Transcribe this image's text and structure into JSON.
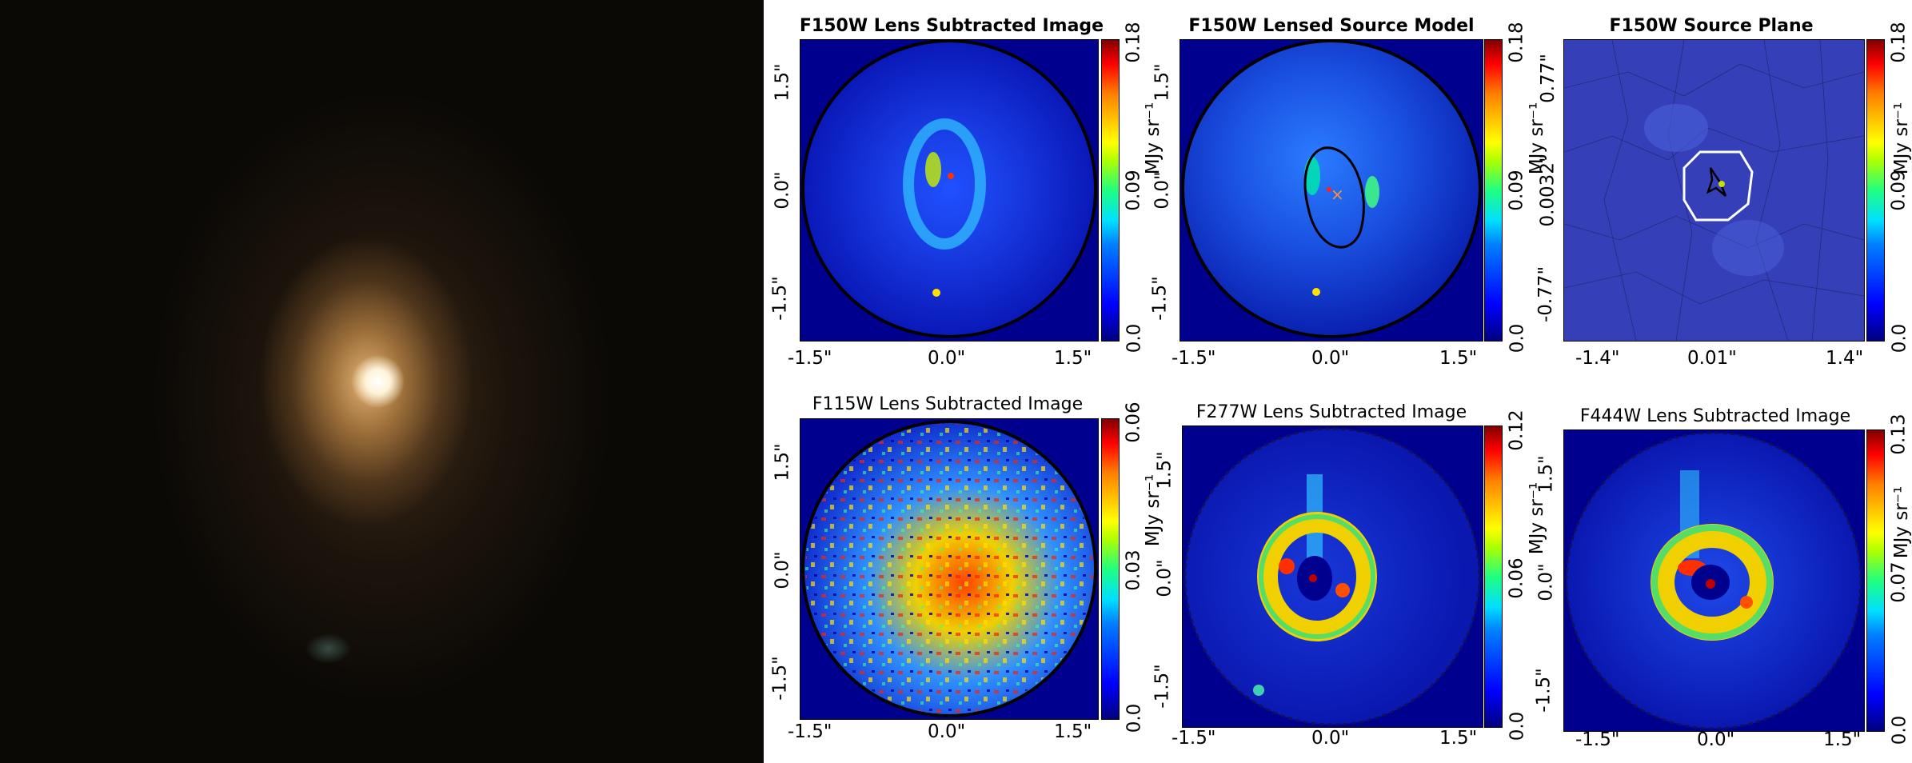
{
  "galaxy_image": {
    "description_label": ""
  },
  "colors": {
    "cmap_low": "#00008f",
    "cmap_high": "#ff0000",
    "source_bg": "#3540b8"
  },
  "panels": [
    {
      "title": "F150W Lens Subtracted Image",
      "title_bold": true,
      "x_ticks": [
        "-1.5\"",
        "0.0\"",
        "1.5\""
      ],
      "y_ticks": [
        "1.5\"",
        "0.0\"",
        "-1.5\""
      ],
      "cbar_ticks": [
        "0.18",
        "0.09",
        "0.0"
      ],
      "cbar_label": "MJy sr⁻¹"
    },
    {
      "title": "F150W Lensed Source Model",
      "title_bold": true,
      "x_ticks": [
        "-1.5\"",
        "0.0\"",
        "1.5\""
      ],
      "y_ticks": [
        "1.5\"",
        "0.0\"",
        "-1.5\""
      ],
      "cbar_ticks": [
        "0.18",
        "0.09",
        "0.0"
      ],
      "cbar_label": "MJy sr⁻¹"
    },
    {
      "title": "F150W Source Plane",
      "title_bold": true,
      "x_ticks": [
        "-1.4\"",
        "0.01\"",
        "1.4\""
      ],
      "y_ticks": [
        "0.77\"",
        "0.0032\"",
        "-0.77\""
      ],
      "cbar_ticks": [
        "0.18",
        "0.09",
        "0.0"
      ],
      "cbar_label": "MJy sr⁻¹"
    },
    {
      "title": "F115W Lens Subtracted Image",
      "title_bold": false,
      "x_ticks": [
        "-1.5\"",
        "0.0\"",
        "1.5\""
      ],
      "y_ticks": [
        "1.5\"",
        "0.0\"",
        "-1.5\""
      ],
      "cbar_ticks": [
        "0.06",
        "0.03",
        "0.0"
      ],
      "cbar_label": "MJy sr⁻¹"
    },
    {
      "title": "F277W Lens Subtracted Image",
      "title_bold": false,
      "x_ticks": [
        "-1.5\"",
        "0.0\"",
        "1.5\""
      ],
      "y_ticks": [
        "1.5\"",
        "0.0\"",
        "-1.5\""
      ],
      "cbar_ticks": [
        "0.12",
        "0.06",
        "0.0"
      ],
      "cbar_label": "MJy sr⁻¹"
    },
    {
      "title": "F444W Lens Subtracted Image",
      "title_bold": false,
      "x_ticks": [
        "-1.5\"",
        "0.0\"",
        "1.5\""
      ],
      "y_ticks": [
        "1.5\"",
        "0.0\"",
        "-1.5\""
      ],
      "cbar_ticks": [
        "0.13",
        "0.07",
        "0.0"
      ],
      "cbar_label": "MJy sr⁻¹"
    }
  ]
}
